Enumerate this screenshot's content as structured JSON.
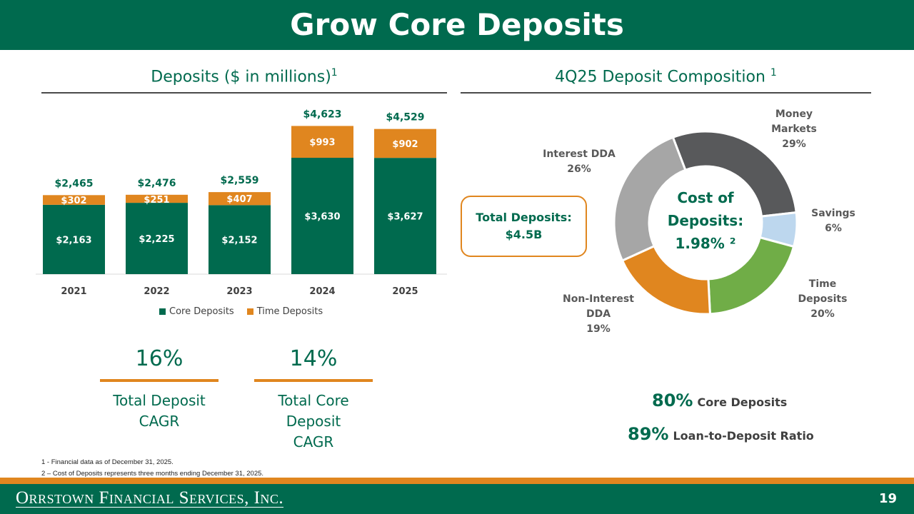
{
  "header": {
    "title": "Grow Core Deposits"
  },
  "left_section": {
    "title": "Deposits ($ in millions)",
    "sup": "1"
  },
  "right_section": {
    "title": "4Q25 Deposit Composition ",
    "sup": "1"
  },
  "colors": {
    "green": "#006a4e",
    "orange": "#e0861f",
    "dark_gray": "#58595b",
    "light_blue": "#bdd7ee",
    "light_green": "#70ad47",
    "gray": "#a6a6a6"
  },
  "chart_data": [
    {
      "type": "bar",
      "stacked": true,
      "categories": [
        "2021",
        "2022",
        "2023",
        "2024",
        "2025"
      ],
      "series": [
        {
          "name": "Core Deposits",
          "color": "#006a4e",
          "values": [
            2163,
            2225,
            2152,
            3630,
            3627
          ],
          "labels": [
            "$2,163",
            "$2,225",
            "$2,152",
            "$3,630",
            "$3,627"
          ]
        },
        {
          "name": "Time Deposits",
          "color": "#e0861f",
          "values": [
            302,
            251,
            407,
            993,
            902
          ],
          "labels": [
            "$302",
            "$251",
            "$407",
            "$993",
            "$902"
          ]
        }
      ],
      "totals": [
        "$2,465",
        "$2,476",
        "$2,559",
        "$4,623",
        "$4,529"
      ],
      "legend": [
        "Core Deposits",
        "Time Deposits"
      ],
      "legend_position": "bottom"
    },
    {
      "type": "pie",
      "donut": true,
      "slices": [
        {
          "label": "Money Markets",
          "value": 29,
          "pct": "29%",
          "color": "#58595b"
        },
        {
          "label": "Savings",
          "value": 6,
          "pct": "6%",
          "color": "#bdd7ee"
        },
        {
          "label": "Time Deposits",
          "value": 20,
          "pct": "20%",
          "color": "#70ad47"
        },
        {
          "label": "Non-Interest DDA",
          "value": 19,
          "pct": "19%",
          "color": "#e0861f"
        },
        {
          "label": "Interest DDA",
          "value": 26,
          "pct": "26%",
          "color": "#a6a6a6"
        }
      ],
      "center_text": [
        "Cost of",
        "Deposits:",
        "1.98% ²"
      ]
    }
  ],
  "stats": [
    {
      "value": "16%",
      "label": [
        "Total Deposit",
        "CAGR"
      ]
    },
    {
      "value": "14%",
      "label": [
        "Total Core",
        "Deposit",
        "CAGR"
      ]
    }
  ],
  "total_box": {
    "line1": "Total Deposits:",
    "line2": "$4.5B"
  },
  "kpis": [
    {
      "value": "80%",
      "text": "Core Deposits"
    },
    {
      "value": "89%",
      "text": "Loan-to-Deposit Ratio"
    }
  ],
  "footnotes": [
    "1 -  Financial data as of December 31, 2025.",
    "2 – Cost of Deposits represents three months ending December 31, 2025."
  ],
  "footer": {
    "company": "Orrstown Financial Services, Inc.",
    "page": "19"
  }
}
